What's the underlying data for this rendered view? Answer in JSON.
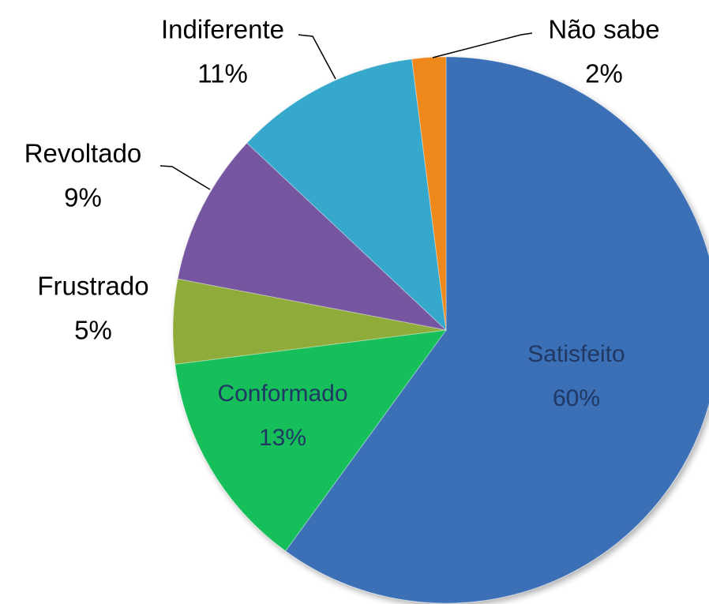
{
  "chart_data": {
    "type": "pie",
    "categories": [
      "Satisfeito",
      "Conformado",
      "Frustrado",
      "Revoltado",
      "Indiferente",
      "Não sabe"
    ],
    "values": [
      60,
      13,
      5,
      9,
      11,
      2
    ],
    "value_labels": [
      "60%",
      "13%",
      "5%",
      "9%",
      "11%",
      "2%"
    ],
    "colors": [
      "#3b6fb6",
      "#12bf5a",
      "#8fac3a",
      "#7656a0",
      "#36a8cb",
      "#f0891f"
    ]
  }
}
